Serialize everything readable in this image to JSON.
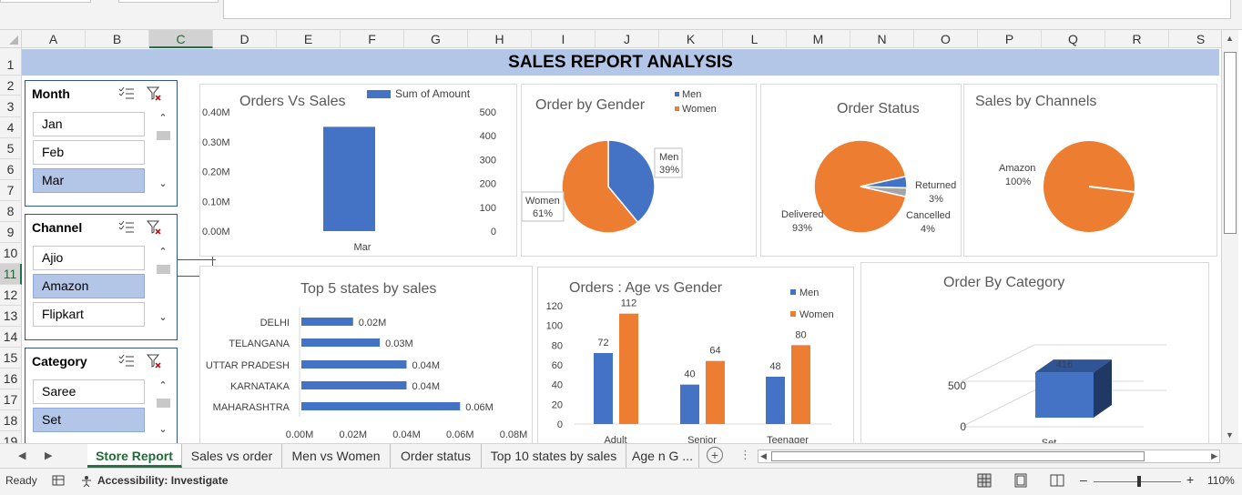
{
  "columns": [
    "A",
    "B",
    "C",
    "D",
    "E",
    "F",
    "G",
    "H",
    "I",
    "J",
    "K",
    "L",
    "M",
    "N",
    "O",
    "P",
    "Q",
    "R",
    "S"
  ],
  "selected_column": "C",
  "rows": [
    "1",
    "2",
    "3",
    "4",
    "5",
    "6",
    "7",
    "8",
    "9",
    "10",
    "11",
    "12",
    "13",
    "14",
    "15",
    "16",
    "17",
    "18",
    "19"
  ],
  "selected_row": "11",
  "report_title": "SALES REPORT ANALYSIS",
  "slicers": {
    "month": {
      "title": "Month",
      "items": [
        {
          "label": "Jan",
          "selected": false
        },
        {
          "label": "Feb",
          "selected": false
        },
        {
          "label": "Mar",
          "selected": true
        }
      ]
    },
    "channel": {
      "title": "Channel",
      "items": [
        {
          "label": "Ajio",
          "selected": false
        },
        {
          "label": "Amazon",
          "selected": true
        },
        {
          "label": "Flipkart",
          "selected": false
        }
      ]
    },
    "category": {
      "title": "Category",
      "items": [
        {
          "label": "Saree",
          "selected": false
        },
        {
          "label": "Set",
          "selected": true
        }
      ]
    }
  },
  "chart_data": [
    {
      "id": "orders-vs-sales",
      "type": "bar",
      "title": "Orders Vs Sales",
      "legend": "Sum of Amount",
      "categories": [
        "Mar"
      ],
      "values": [
        0.35
      ],
      "y_ticks": [
        "0.00M",
        "0.10M",
        "0.20M",
        "0.30M",
        "0.40M"
      ],
      "y2_ticks": [
        "0",
        "100",
        "200",
        "300",
        "400",
        "500"
      ],
      "ylim": [
        0,
        0.4
      ]
    },
    {
      "id": "order-by-gender",
      "type": "pie",
      "title": "Order by Gender",
      "slices": [
        {
          "name": "Men",
          "value": 39,
          "label": "39%",
          "color": "#4472c4"
        },
        {
          "name": "Women",
          "value": 61,
          "label": "61%",
          "color": "#ed7d31"
        }
      ]
    },
    {
      "id": "order-status",
      "type": "pie",
      "title": "Order Status",
      "slices": [
        {
          "name": "Delivered",
          "value": 93,
          "label": "93%",
          "color": "#ed7d31"
        },
        {
          "name": "Cancelled",
          "value": 4,
          "label": "4%",
          "color": "#4472c4"
        },
        {
          "name": "Returned",
          "value": 3,
          "label": "3%",
          "color": "#a5a5a5"
        }
      ]
    },
    {
      "id": "sales-by-channels",
      "type": "pie",
      "title": "Sales by Channels",
      "slices": [
        {
          "name": "Amazon",
          "value": 100,
          "label": "100%",
          "color": "#ed7d31"
        }
      ]
    },
    {
      "id": "top-5-states",
      "type": "bar",
      "orientation": "horizontal",
      "title": "Top 5 states by sales",
      "categories": [
        "DELHI",
        "TELANGANA",
        "UTTAR PRADESH",
        "KARNATAKA",
        "MAHARASHTRA"
      ],
      "values": [
        0.02,
        0.03,
        0.04,
        0.04,
        0.06
      ],
      "value_labels": [
        "0.02M",
        "0.03M",
        "0.04M",
        "0.04M",
        "0.06M"
      ],
      "x_ticks": [
        "0.00M",
        "0.02M",
        "0.04M",
        "0.06M",
        "0.08M"
      ],
      "xlim": [
        0,
        0.08
      ]
    },
    {
      "id": "age-vs-gender",
      "type": "bar",
      "title": "Orders : Age vs Gender",
      "categories": [
        "Adult",
        "Senior",
        "Teenager"
      ],
      "series": [
        {
          "name": "Men",
          "values": [
            72,
            40,
            48
          ],
          "color": "#4472c4"
        },
        {
          "name": "Women",
          "values": [
            112,
            64,
            80
          ],
          "color": "#ed7d31"
        }
      ],
      "y_ticks": [
        "0",
        "20",
        "40",
        "60",
        "80",
        "100",
        "120"
      ],
      "ylim": [
        0,
        120
      ]
    },
    {
      "id": "order-by-category",
      "type": "bar",
      "title": "Order By Category",
      "categories": [
        "Set"
      ],
      "values": [
        416
      ],
      "value_labels": [
        "416"
      ],
      "y_ticks": [
        "0",
        "500"
      ],
      "ylim": [
        0,
        500
      ]
    }
  ],
  "sheet_tabs": [
    "Store Report",
    "Sales vs order",
    "Men vs Women",
    "Order status",
    "Top 10 states by sales",
    "Age n G ..."
  ],
  "active_tab": "Store Report",
  "status": {
    "ready": "Ready",
    "accessibility": "Accessibility: Investigate",
    "zoom": "110%"
  }
}
